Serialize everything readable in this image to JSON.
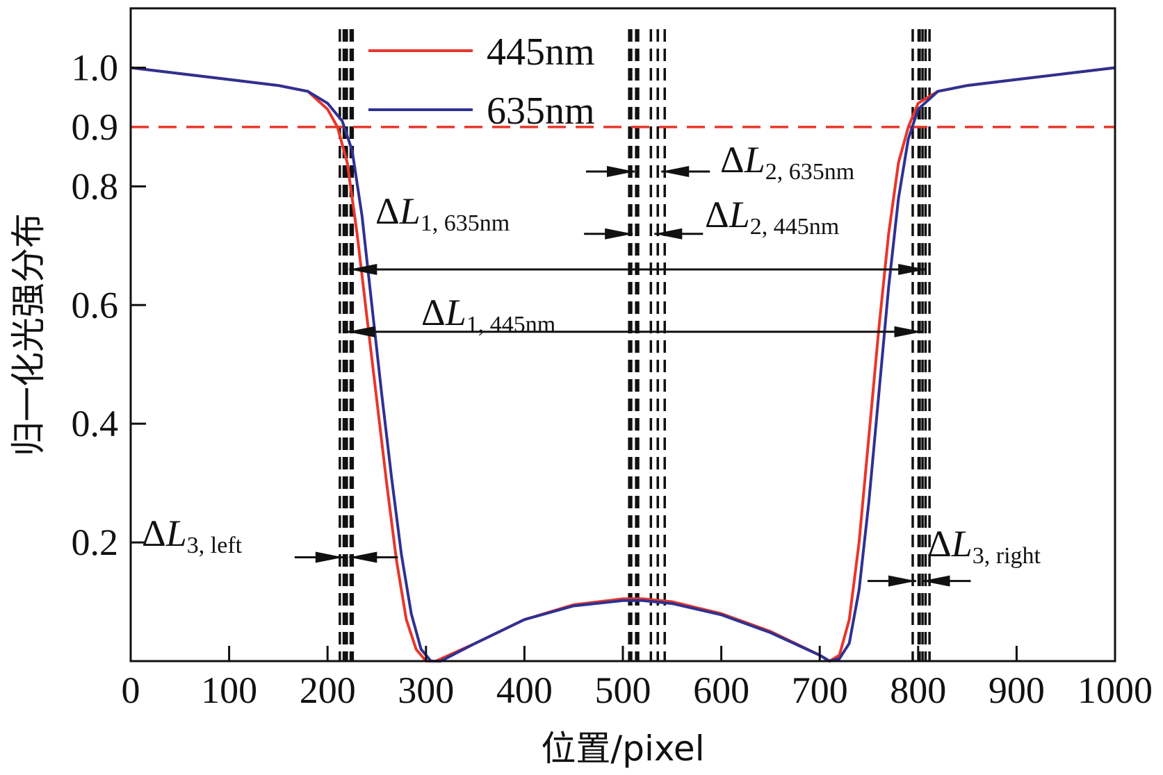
{
  "chart_data": {
    "type": "line",
    "xlabel": "位置/pixel",
    "ylabel": "归一化光强分布",
    "xlim": [
      0,
      1000
    ],
    "ylim": [
      0,
      1.1
    ],
    "x_ticks": [
      0,
      100,
      200,
      300,
      400,
      500,
      600,
      700,
      800,
      900,
      1000
    ],
    "x_tick_labels": [
      "0",
      "100",
      "200",
      "300",
      "400",
      "500",
      "600",
      "700",
      "800",
      "900",
      "1000"
    ],
    "y_ticks": [
      0.2,
      0.4,
      0.6,
      0.8,
      0.9,
      1.0
    ],
    "y_tick_labels": [
      "0.2",
      "0.4",
      "0.6",
      "0.8",
      "0.9",
      "1.0"
    ],
    "threshold_line": {
      "y": 0.9,
      "color": "#e8362a",
      "style": "dashed",
      "label": "0.9"
    },
    "grid": false,
    "legend_position": "top-center",
    "series": [
      {
        "name": "445nm",
        "color": "#e8362a",
        "x": [
          0,
          50,
          100,
          150,
          180,
          200,
          210,
          220,
          230,
          240,
          250,
          260,
          270,
          280,
          290,
          300,
          310,
          350,
          400,
          450,
          500,
          520,
          550,
          600,
          650,
          700,
          710,
          720,
          730,
          740,
          750,
          760,
          770,
          780,
          790,
          800,
          820,
          850,
          900,
          950,
          1000
        ],
        "y": [
          1.0,
          0.99,
          0.98,
          0.97,
          0.96,
          0.93,
          0.9,
          0.84,
          0.72,
          0.58,
          0.44,
          0.3,
          0.17,
          0.07,
          0.02,
          0.0,
          0.0,
          0.03,
          0.07,
          0.095,
          0.105,
          0.105,
          0.1,
          0.08,
          0.05,
          0.01,
          0.0,
          0.01,
          0.07,
          0.2,
          0.38,
          0.56,
          0.72,
          0.84,
          0.9,
          0.94,
          0.96,
          0.97,
          0.98,
          0.99,
          1.0
        ]
      },
      {
        "name": "635nm",
        "color": "#2e3192",
        "x": [
          0,
          50,
          100,
          150,
          180,
          200,
          215,
          225,
          235,
          245,
          255,
          265,
          275,
          285,
          295,
          305,
          315,
          350,
          400,
          450,
          500,
          520,
          550,
          600,
          650,
          700,
          710,
          720,
          730,
          740,
          750,
          760,
          770,
          780,
          790,
          800,
          820,
          850,
          900,
          950,
          1000
        ],
        "y": [
          1.0,
          0.99,
          0.98,
          0.97,
          0.96,
          0.94,
          0.91,
          0.86,
          0.75,
          0.6,
          0.45,
          0.31,
          0.18,
          0.08,
          0.02,
          0.0,
          0.0,
          0.03,
          0.07,
          0.093,
          0.102,
          0.102,
          0.097,
          0.078,
          0.048,
          0.01,
          0.0,
          0.004,
          0.03,
          0.12,
          0.27,
          0.45,
          0.63,
          0.78,
          0.88,
          0.93,
          0.96,
          0.97,
          0.98,
          0.99,
          1.0
        ]
      }
    ],
    "annotations": [
      {
        "main": "ΔL",
        "sub": "1, 635nm",
        "y": 0.66,
        "x_from": 222,
        "x_to": 808
      },
      {
        "main": "ΔL",
        "sub": "1, 445nm",
        "y": 0.555,
        "x_from": 220,
        "x_to": 804
      },
      {
        "main": "ΔL",
        "sub": "2, 635nm",
        "y": 0.825,
        "x_from": 512,
        "x_to": 539
      },
      {
        "main": "ΔL",
        "sub": "2, 445nm",
        "y": 0.72,
        "x_from": 510,
        "x_to": 532
      },
      {
        "main": "ΔL",
        "sub": "3, left",
        "y": 0.175,
        "x_from": 216,
        "x_to": 222
      },
      {
        "main": "ΔL",
        "sub": "3, right",
        "y": 0.135,
        "x_from": 798,
        "x_to": 804
      }
    ]
  }
}
